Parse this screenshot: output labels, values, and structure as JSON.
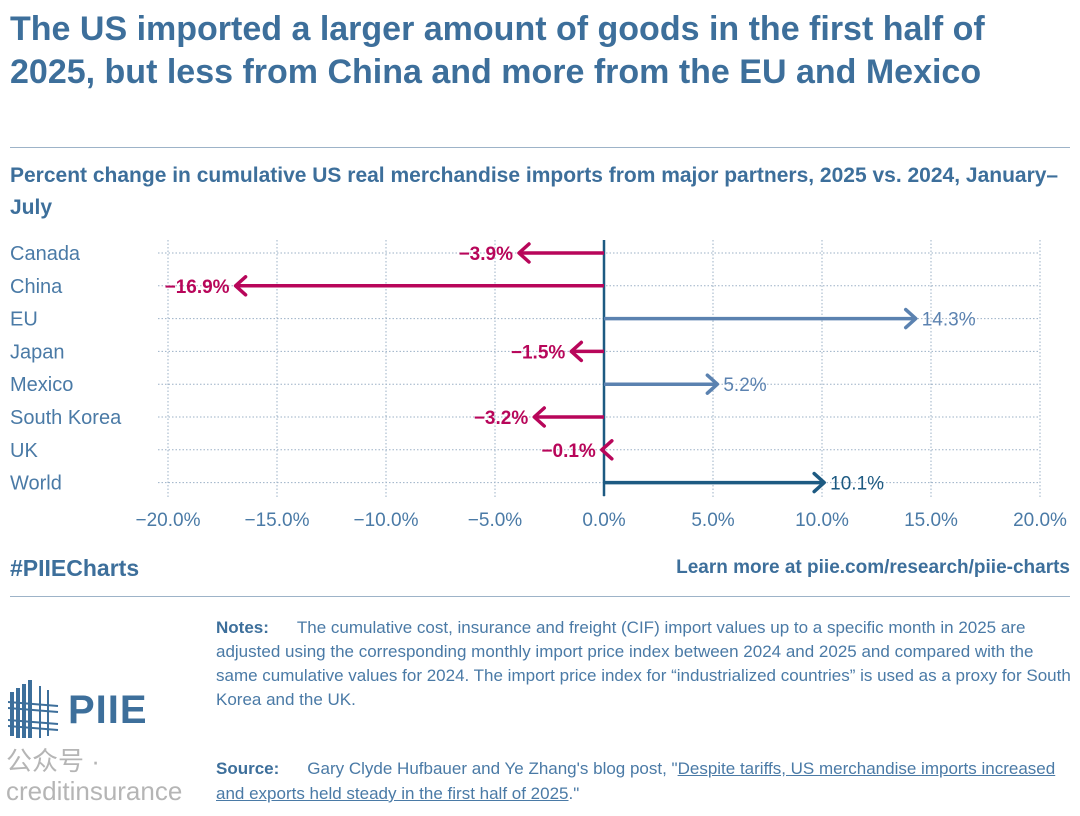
{
  "header": {
    "title": "The US imported a larger amount of goods in the first half of 2025, but less from China and more from the EU and Mexico",
    "subtitle": "Percent change in cumulative US real merchandise imports from major partners, 2025 vs. 2024, January–July"
  },
  "chart_data": {
    "type": "bar",
    "orientation": "horizontal",
    "categories": [
      "Canada",
      "China",
      "EU",
      "Japan",
      "Mexico",
      "South Korea",
      "UK",
      "World"
    ],
    "values": [
      -3.9,
      -16.9,
      14.3,
      -1.5,
      5.2,
      -3.2,
      -0.1,
      10.1
    ],
    "labels": [
      "−3.9%",
      "−16.9%",
      "14.3%",
      "−1.5%",
      "5.2%",
      "−3.2%",
      "−0.1%",
      "10.1%"
    ],
    "xlim": [
      -20,
      20
    ],
    "xticks": [
      -20,
      -15,
      -10,
      -5,
      0,
      5,
      10,
      15,
      20
    ],
    "xtick_labels": [
      "−20.0%",
      "−15.0%",
      "−10.0%",
      "−5.0%",
      "0.0%",
      "5.0%",
      "10.0%",
      "15.0%",
      "20.0%"
    ],
    "grid": true,
    "colors": {
      "negative": "#b8065a",
      "positive": "#5b82b0",
      "world": "#1d5a82"
    }
  },
  "footer": {
    "hashtag": "#PIIECharts",
    "learn_more": "Learn more at piie.com/research/piie-charts"
  },
  "notes": {
    "label": "Notes:",
    "text": "The cumulative cost, insurance and freight (CIF) import values up to a specific month in 2025 are adjusted using the corresponding monthly import price index between 2024 and 2025 and compared with the same cumulative values for 2024. The import price index for “industrialized countries” is used as a proxy for South Korea and the UK."
  },
  "source": {
    "label": "Source:",
    "text": "Gary Clyde Hufbauer and Ye Zhang's blog post, \"",
    "link": "Despite tariffs, US merchandise imports increased and exports held steady in the first half of 2025",
    "end": ".\""
  },
  "logo": {
    "text": "PIIE"
  },
  "watermark": "公众号 · creditinsurance"
}
